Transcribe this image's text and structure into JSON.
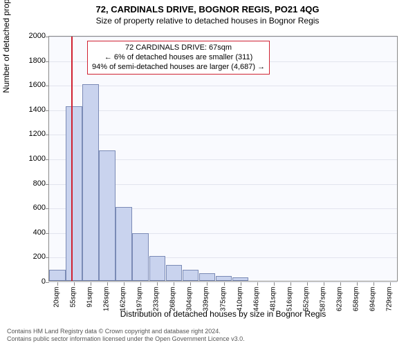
{
  "title": "72, CARDINALS DRIVE, BOGNOR REGIS, PO21 4QG",
  "subtitle": "Size of property relative to detached houses in Bognor Regis",
  "chart": {
    "type": "bar",
    "background_color": "#f9fafe",
    "grid_color": "#e2e4ee",
    "bar_fill": "#c9d3ee",
    "bar_border": "#7a8ab5",
    "marker_color": "#d02030",
    "ylabel": "Number of detached properties",
    "xlabel": "Distribution of detached houses by size in Bognor Regis",
    "ylim": [
      0,
      2000
    ],
    "ytick_step": 200,
    "yticks": [
      0,
      200,
      400,
      600,
      800,
      1000,
      1200,
      1400,
      1600,
      1800,
      2000
    ],
    "xticks": [
      "20sqm",
      "55sqm",
      "91sqm",
      "126sqm",
      "162sqm",
      "197sqm",
      "233sqm",
      "268sqm",
      "304sqm",
      "339sqm",
      "375sqm",
      "410sqm",
      "446sqm",
      "481sqm",
      "516sqm",
      "552sqm",
      "587sqm",
      "623sqm",
      "658sqm",
      "694sqm",
      "729sqm"
    ],
    "n_bars": 21,
    "values": [
      90,
      1420,
      1600,
      1060,
      600,
      390,
      200,
      130,
      90,
      60,
      40,
      30,
      0,
      0,
      0,
      0,
      0,
      0,
      0,
      0,
      0
    ],
    "marker_bin_index": 1,
    "marker_fraction_in_bin": 0.35,
    "annotation": {
      "line1": "72 CARDINALS DRIVE: 67sqm",
      "line2": "← 6% of detached houses are smaller (311)",
      "line3": "94% of semi-detached houses are larger (4,687) →"
    }
  },
  "footer": {
    "line1": "Contains HM Land Registry data © Crown copyright and database right 2024.",
    "line2": "Contains public sector information licensed under the Open Government Licence v3.0."
  }
}
